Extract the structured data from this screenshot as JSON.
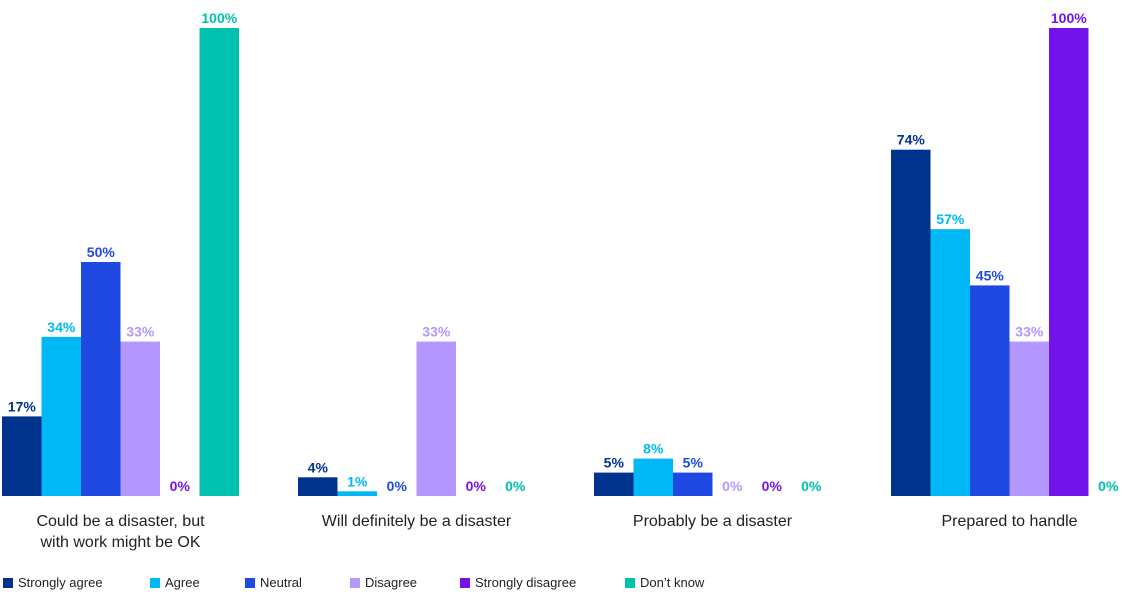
{
  "chart_data": {
    "type": "bar",
    "categories": [
      [
        "Could be a disaster, but",
        "with work might be OK"
      ],
      [
        "Will definitely be a disaster"
      ],
      [
        "Probably be a disaster"
      ],
      [
        "Prepared to handle"
      ]
    ],
    "series": [
      {
        "name": "Strongly agree",
        "color": "#00338d",
        "values": [
          17,
          4,
          5,
          74
        ]
      },
      {
        "name": "Agree",
        "color": "#00b8f5",
        "values": [
          34,
          1,
          8,
          57
        ]
      },
      {
        "name": "Neutral",
        "color": "#1e49e2",
        "values": [
          50,
          0,
          5,
          45
        ]
      },
      {
        "name": "Disagree",
        "color": "#b497ff",
        "values": [
          33,
          33,
          0,
          33
        ]
      },
      {
        "name": "Strongly disagree",
        "color": "#7213ea",
        "values": [
          0,
          0,
          0,
          100
        ]
      },
      {
        "name": "Don’t know",
        "color": "#00c0ae",
        "values": [
          100,
          0,
          0,
          0
        ]
      }
    ],
    "value_suffix": "%",
    "ylim": [
      0,
      100
    ],
    "grid": false,
    "legend_position": "bottom-left"
  }
}
